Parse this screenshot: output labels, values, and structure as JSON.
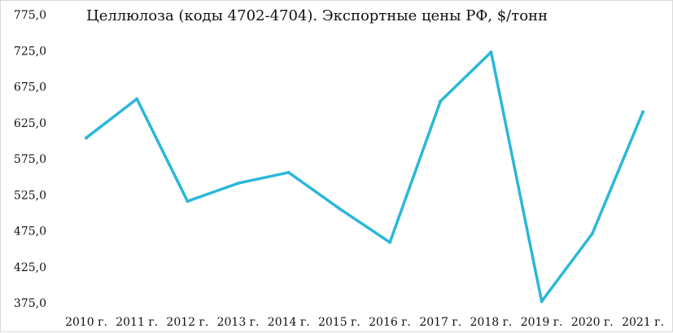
{
  "chart_data": {
    "type": "line",
    "title": "Целлюлоза (коды 4702-4704). Экспортные цены РФ, $/тонн",
    "xlabel": "",
    "ylabel": "",
    "categories": [
      "2010 г.",
      "2011 г.",
      "2012 г.",
      "2013 г.",
      "2014 г.",
      "2015 г.",
      "2016 г.",
      "2017 г.",
      "2018 г.",
      "2019 г.",
      "2020 г.",
      "2021 г."
    ],
    "series": [
      {
        "values": [
          604,
          658,
          516,
          541,
          556,
          506,
          459,
          655,
          723,
          377,
          471,
          640
        ]
      }
    ],
    "ylim": [
      375,
      775
    ],
    "yticks": [
      "375,0",
      "425,0",
      "475,0",
      "525,0",
      "575,0",
      "625,0",
      "675,0",
      "725,0",
      "775,0"
    ],
    "grid": false,
    "legend": "none",
    "line_color": "#2bb7d9"
  }
}
